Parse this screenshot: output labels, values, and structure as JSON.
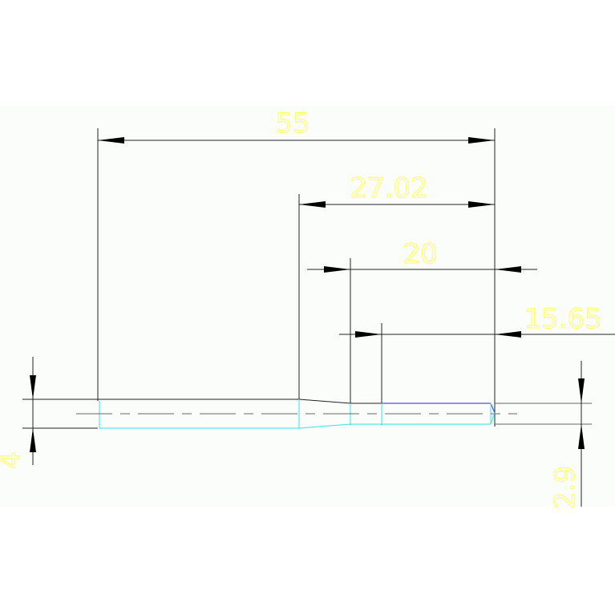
{
  "drawing": {
    "background": "#fbfdfb",
    "dimension_text_color": "#ffff55",
    "profile_color": "#55e8ee",
    "chamfer_color": "#5a4fd8",
    "dimensions": {
      "overall_length": "55",
      "taper_to_end": "27.02",
      "small_section": "20",
      "end_section": "15.65",
      "large_diameter": "4",
      "small_diameter": "2.9"
    }
  }
}
